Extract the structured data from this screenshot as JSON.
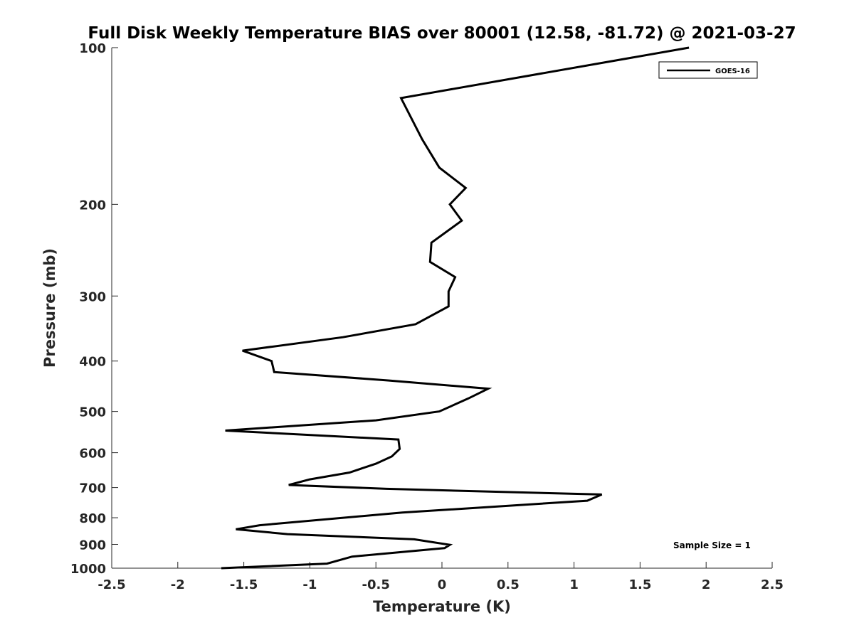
{
  "chart_data": {
    "type": "line",
    "title": "Full Disk Weekly Temperature BIAS over 80001 (12.58, -81.72) @ 2021-03-27",
    "xlabel": "Temperature (K)",
    "ylabel": "Pressure (mb)",
    "xlim": [
      -2.5,
      2.5
    ],
    "ylim": [
      100,
      1000
    ],
    "y_scale": "log",
    "y_reversed": true,
    "x_ticks": [
      -2.5,
      -2,
      -1.5,
      -1,
      -0.5,
      0,
      0.5,
      1,
      1.5,
      2,
      2.5
    ],
    "x_tick_labels": [
      "-2.5",
      "-2",
      "-1.5",
      "-1",
      "-0.5",
      "0",
      "0.5",
      "1",
      "1.5",
      "2",
      "2.5"
    ],
    "y_ticks": [
      100,
      200,
      300,
      400,
      500,
      600,
      700,
      800,
      900,
      1000
    ],
    "y_tick_labels": [
      "100",
      "200",
      "300",
      "400",
      "500",
      "600",
      "700",
      "800",
      "900",
      "1000"
    ],
    "grid": false,
    "legend_position": "top-right",
    "series": [
      {
        "name": "GOES-16",
        "color": "#000000",
        "points": [
          {
            "t": 1.87,
            "p": 100
          },
          {
            "t": -0.31,
            "p": 125
          },
          {
            "t": -0.15,
            "p": 150
          },
          {
            "t": -0.02,
            "p": 170
          },
          {
            "t": 0.18,
            "p": 186
          },
          {
            "t": 0.06,
            "p": 200
          },
          {
            "t": 0.15,
            "p": 215
          },
          {
            "t": -0.08,
            "p": 237
          },
          {
            "t": -0.09,
            "p": 258
          },
          {
            "t": 0.1,
            "p": 276
          },
          {
            "t": 0.05,
            "p": 294
          },
          {
            "t": 0.05,
            "p": 314
          },
          {
            "t": -0.2,
            "p": 340
          },
          {
            "t": -0.75,
            "p": 360
          },
          {
            "t": -1.51,
            "p": 382
          },
          {
            "t": -1.29,
            "p": 400
          },
          {
            "t": -1.27,
            "p": 420
          },
          {
            "t": -0.4,
            "p": 436
          },
          {
            "t": 0.35,
            "p": 452
          },
          {
            "t": 0.2,
            "p": 472
          },
          {
            "t": -0.02,
            "p": 500
          },
          {
            "t": -0.5,
            "p": 520
          },
          {
            "t": -1.64,
            "p": 544
          },
          {
            "t": -0.33,
            "p": 566
          },
          {
            "t": -0.32,
            "p": 590
          },
          {
            "t": -0.38,
            "p": 610
          },
          {
            "t": -0.5,
            "p": 630
          },
          {
            "t": -0.7,
            "p": 655
          },
          {
            "t": -1.0,
            "p": 675
          },
          {
            "t": -1.16,
            "p": 692
          },
          {
            "t": -0.42,
            "p": 704
          },
          {
            "t": 1.21,
            "p": 722
          },
          {
            "t": 1.1,
            "p": 742
          },
          {
            "t": -0.3,
            "p": 782
          },
          {
            "t": -1.38,
            "p": 827
          },
          {
            "t": -1.56,
            "p": 842
          },
          {
            "t": -1.17,
            "p": 860
          },
          {
            "t": -0.21,
            "p": 880
          },
          {
            "t": 0.06,
            "p": 902
          },
          {
            "t": 0.02,
            "p": 915
          },
          {
            "t": -0.68,
            "p": 950
          },
          {
            "t": -0.87,
            "p": 980
          },
          {
            "t": -1.67,
            "p": 1000
          }
        ]
      }
    ],
    "annotations": [
      {
        "text": "Sample Size = 1",
        "position": "bottom-right"
      }
    ]
  }
}
